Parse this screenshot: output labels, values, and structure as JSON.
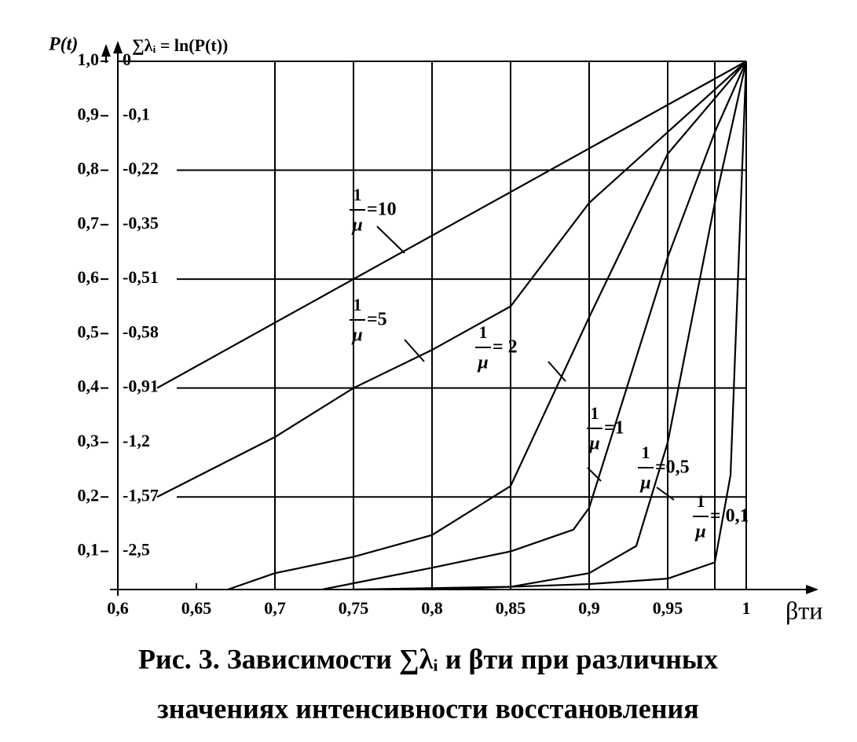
{
  "chart_data": {
    "type": "line",
    "title": [
      "Рис. 3. Зависимости ∑λᵢ и βти при различных",
      "значениях интенсивности восстановления"
    ],
    "y_label": "P(t)",
    "y2_label": "∑λᵢ = ln(P(t))",
    "x_label": "βти",
    "series_label_fraction": [
      "1",
      "μ"
    ],
    "xlim": [
      0.6,
      1
    ],
    "xticks": [
      {
        "value": 0.6,
        "label": "0,6"
      },
      {
        "value": 0.65,
        "label": "0,65"
      },
      {
        "value": 0.7,
        "label": "0,7"
      },
      {
        "value": 0.75,
        "label": "0,75"
      },
      {
        "value": 0.8,
        "label": "0,8"
      },
      {
        "value": 0.85,
        "label": "0,85"
      },
      {
        "value": 0.9,
        "label": "0,9"
      },
      {
        "value": 0.95,
        "label": "0,95"
      },
      1
    ],
    "xgrid": [
      0.7,
      0.75,
      0.8,
      0.85,
      0.9,
      0.95,
      0.98,
      1
    ],
    "ylim": [
      0.03,
      1
    ],
    "yticks": [
      {
        "value": 1.0,
        "label": "1,0"
      },
      {
        "value": 0.9,
        "label": "0,9"
      },
      {
        "value": 0.8,
        "label": "0,8"
      },
      {
        "value": 0.7,
        "label": "0,7"
      },
      {
        "value": 0.6,
        "label": "0,6"
      },
      {
        "value": 0.5,
        "label": "0,5"
      },
      {
        "value": 0.4,
        "label": "0,4"
      },
      {
        "value": 0.3,
        "label": "0,3"
      },
      {
        "value": 0.2,
        "label": "0,2"
      },
      {
        "value": 0.1,
        "label": "0,1"
      }
    ],
    "y2_tick_labels": [
      "0",
      "-0,1",
      "-0,22",
      "-0,35",
      "-0,51",
      "-0,58",
      "-0,91",
      "-1,2",
      "-1,57",
      "-2,5"
    ],
    "ygrid": [
      0.2,
      0.4,
      0.6,
      0.8,
      1.0
    ],
    "color": "#000000",
    "series": [
      {
        "name": "=10",
        "x": [
          0.625,
          1
        ],
        "values": [
          0.4,
          1
        ]
      },
      {
        "name": "=5",
        "x": [
          0.625,
          0.7,
          0.75,
          0.8,
          0.85,
          0.9,
          0.95,
          1
        ],
        "values": [
          0.2,
          0.31,
          0.4,
          0.47,
          0.55,
          0.74,
          0.87,
          1
        ]
      },
      {
        "name": "= 2",
        "x": [
          0.67,
          0.7,
          0.75,
          0.8,
          0.85,
          0.9,
          0.95,
          1
        ],
        "values": [
          0.03,
          0.06,
          0.09,
          0.13,
          0.22,
          0.53,
          0.83,
          1
        ]
      },
      {
        "name": "=1",
        "x": [
          0.73,
          0.8,
          0.85,
          0.89,
          0.9,
          0.95,
          0.98,
          1
        ],
        "values": [
          0.03,
          0.07,
          0.1,
          0.14,
          0.18,
          0.64,
          0.87,
          1
        ]
      },
      {
        "name": "=0,5",
        "x": [
          0.75,
          0.85,
          0.9,
          0.93,
          0.95,
          0.98,
          1
        ],
        "values": [
          0.03,
          0.035,
          0.06,
          0.11,
          0.3,
          0.74,
          1
        ]
      },
      {
        "name": "= 0,1",
        "x": [
          0.8,
          0.9,
          0.95,
          0.98,
          0.99,
          1
        ],
        "values": [
          0.03,
          0.04,
          0.05,
          0.08,
          0.24,
          1
        ]
      }
    ]
  }
}
